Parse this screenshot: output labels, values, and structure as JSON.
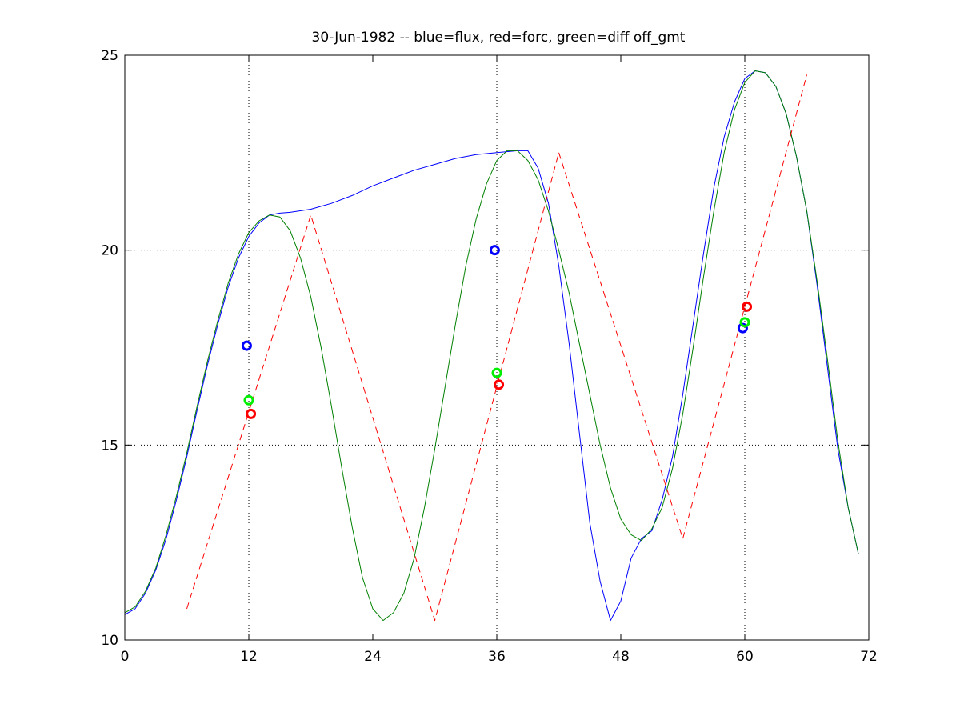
{
  "chart_data": {
    "type": "line",
    "title": "30-Jun-1982 -- blue=flux, red=forc, green=diff off_gmt",
    "xlabel": "",
    "ylabel": "",
    "xlim": [
      0,
      72
    ],
    "ylim": [
      10,
      25
    ],
    "xticks": [
      0,
      12,
      24,
      36,
      48,
      60,
      72
    ],
    "yticks": [
      10,
      15,
      20,
      25
    ],
    "xtick_labels": [
      "0",
      "12",
      "24",
      "36",
      "48",
      "60",
      "72"
    ],
    "ytick_labels": [
      "10",
      "15",
      "20",
      "25"
    ],
    "grid": {
      "x_lines_at": [
        12,
        36,
        60
      ],
      "y_lines_at": [
        15,
        20
      ],
      "style": "dotted"
    },
    "colors": {
      "blue": "#0000ff",
      "red": "#ff0000",
      "green": "#008000",
      "marker_green": "#00ee00",
      "axis": "#000000"
    },
    "series": [
      {
        "color": "blue",
        "style": "solid",
        "x": [
          0,
          1,
          2,
          3,
          4,
          5,
          6,
          7,
          8,
          9,
          10,
          11,
          12,
          13,
          14,
          15,
          16,
          18,
          20,
          22,
          24,
          26,
          28,
          30,
          32,
          34,
          36,
          38,
          39,
          40,
          41,
          42,
          43,
          44,
          45,
          46,
          47,
          48,
          49,
          50,
          51,
          52,
          53,
          54,
          55,
          56,
          57,
          58,
          59,
          60,
          61,
          62,
          63,
          64,
          65,
          66,
          67,
          68,
          69,
          70,
          71
        ],
        "y": [
          10.65,
          10.8,
          11.2,
          11.8,
          12.6,
          13.6,
          14.7,
          15.9,
          17.05,
          18.1,
          19.05,
          19.8,
          20.35,
          20.7,
          20.9,
          20.95,
          20.97,
          21.05,
          21.2,
          21.4,
          21.65,
          21.85,
          22.05,
          22.2,
          22.35,
          22.45,
          22.5,
          22.55,
          22.55,
          22.1,
          21.2,
          19.6,
          17.6,
          15.3,
          13.0,
          11.5,
          10.5,
          11.0,
          12.1,
          12.6,
          12.8,
          13.6,
          14.7,
          16.3,
          18.1,
          19.9,
          21.6,
          22.9,
          23.8,
          24.4,
          24.6,
          24.55,
          24.2,
          23.5,
          22.4,
          21.0,
          19.1,
          17.0,
          14.9,
          13.4,
          12.2
        ]
      },
      {
        "color": "green",
        "style": "solid",
        "x": [
          0,
          1,
          2,
          3,
          4,
          5,
          6,
          7,
          8,
          9,
          10,
          11,
          12,
          13,
          14,
          15,
          16,
          17,
          18,
          19,
          20,
          21,
          22,
          23,
          24,
          25,
          26,
          27,
          28,
          29,
          30,
          31,
          32,
          33,
          34,
          35,
          36,
          37,
          38,
          39,
          40,
          41,
          42,
          43,
          44,
          45,
          46,
          47,
          48,
          49,
          50,
          51,
          52,
          53,
          54,
          55,
          56,
          57,
          58,
          59,
          60,
          61,
          62,
          63,
          64,
          65,
          66,
          67,
          68,
          69,
          70,
          71
        ],
        "y": [
          10.7,
          10.85,
          11.25,
          11.85,
          12.7,
          13.7,
          14.8,
          16.0,
          17.15,
          18.2,
          19.15,
          19.9,
          20.45,
          20.75,
          20.9,
          20.85,
          20.5,
          19.8,
          18.8,
          17.5,
          16.0,
          14.4,
          12.9,
          11.6,
          10.8,
          10.5,
          10.7,
          11.2,
          12.1,
          13.4,
          14.9,
          16.5,
          18.1,
          19.6,
          20.8,
          21.7,
          22.3,
          22.55,
          22.55,
          22.3,
          21.8,
          21.0,
          20.0,
          18.9,
          17.6,
          16.3,
          15.0,
          13.9,
          13.1,
          12.7,
          12.55,
          12.85,
          13.4,
          14.4,
          15.8,
          17.5,
          19.3,
          21.0,
          22.5,
          23.6,
          24.3,
          24.6,
          24.55,
          24.2,
          23.5,
          22.4,
          21.0,
          19.2,
          17.2,
          15.1,
          13.4,
          12.2
        ]
      },
      {
        "color": "red",
        "style": "dashed",
        "x": [
          6,
          18,
          30,
          42,
          54,
          66
        ],
        "y": [
          10.8,
          20.9,
          10.5,
          22.5,
          12.6,
          24.5
        ]
      }
    ],
    "markers": [
      {
        "color": "blue",
        "x": 11.8,
        "y": 17.55
      },
      {
        "color": "marker_green",
        "x": 12.0,
        "y": 16.15
      },
      {
        "color": "red",
        "x": 12.2,
        "y": 15.8
      },
      {
        "color": "blue",
        "x": 35.8,
        "y": 20.0
      },
      {
        "color": "marker_green",
        "x": 36.0,
        "y": 16.85
      },
      {
        "color": "red",
        "x": 36.2,
        "y": 16.55
      },
      {
        "color": "blue",
        "x": 59.8,
        "y": 18.0
      },
      {
        "color": "marker_green",
        "x": 60.0,
        "y": 18.15
      },
      {
        "color": "red",
        "x": 60.2,
        "y": 18.55
      }
    ]
  }
}
